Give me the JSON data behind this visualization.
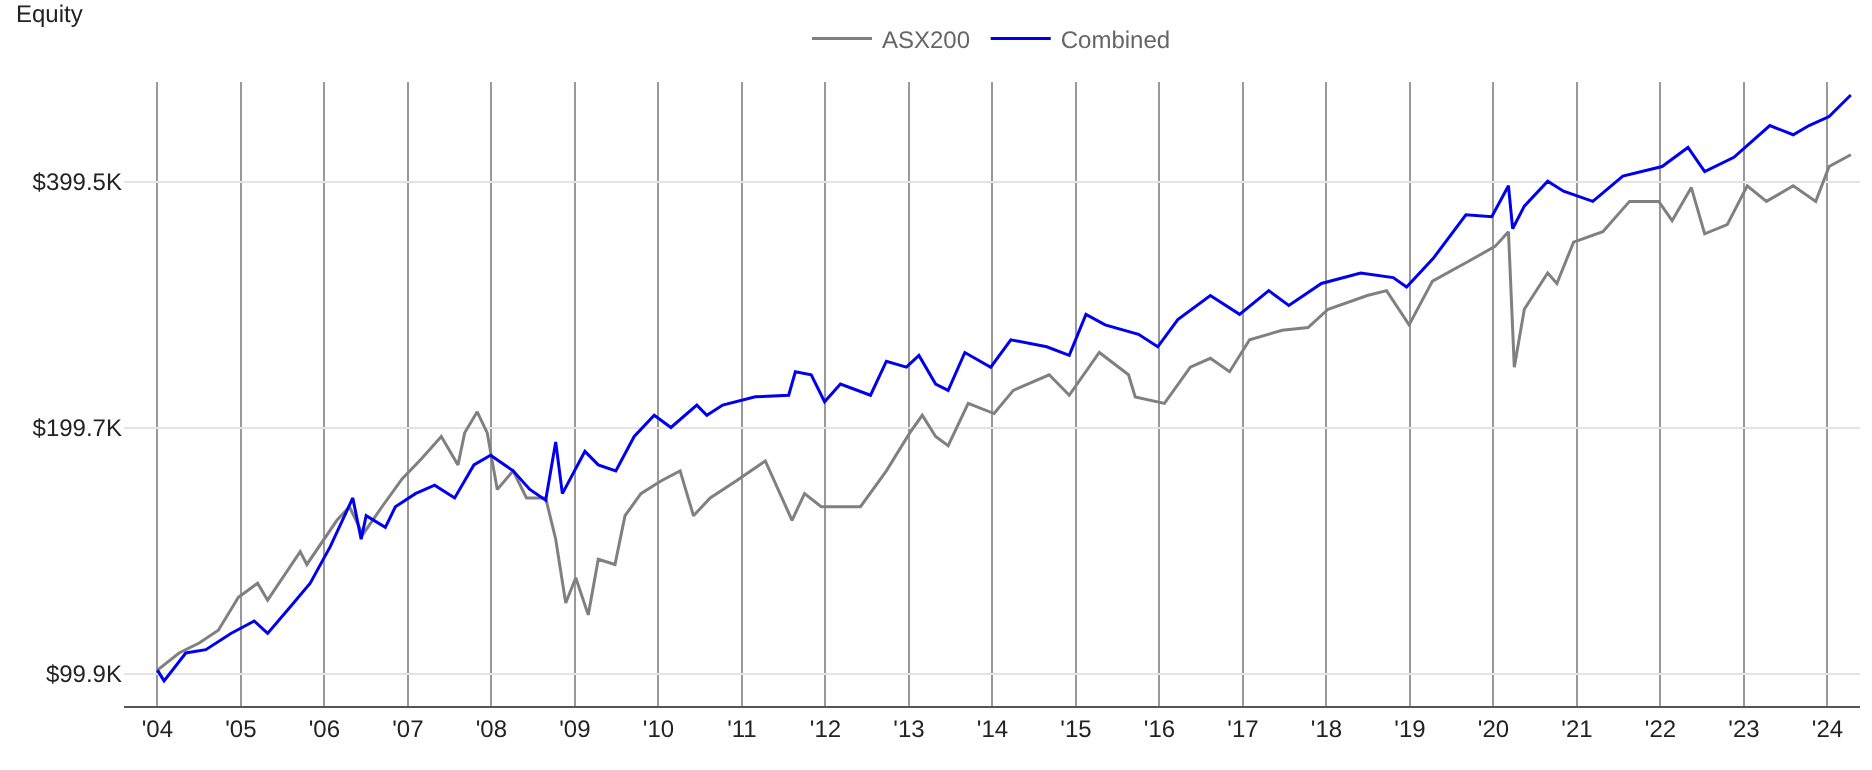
{
  "chart_data": {
    "type": "line",
    "ylabel": "Equity",
    "log": "y",
    "grid": true,
    "legend": "top",
    "line_style": "solid",
    "marker": "none",
    "xlim": [
      2003.6,
      2024.39
    ],
    "ylim": [
      91.3,
      529
    ],
    "xticks": [
      {
        "value": 2004,
        "label": "'04"
      },
      {
        "value": 2005,
        "label": "'05"
      },
      {
        "value": 2006,
        "label": "'06"
      },
      {
        "value": 2007,
        "label": "'07"
      },
      {
        "value": 2008,
        "label": "'08"
      },
      {
        "value": 2009,
        "label": "'09"
      },
      {
        "value": 2010,
        "label": "'10"
      },
      {
        "value": 2011,
        "label": "'11"
      },
      {
        "value": 2012,
        "label": "'12"
      },
      {
        "value": 2013,
        "label": "'13"
      },
      {
        "value": 2014,
        "label": "'14"
      },
      {
        "value": 2015,
        "label": "'15"
      },
      {
        "value": 2016,
        "label": "'16"
      },
      {
        "value": 2017,
        "label": "'17"
      },
      {
        "value": 2018,
        "label": "'18"
      },
      {
        "value": 2019,
        "label": "'19"
      },
      {
        "value": 2020,
        "label": "'20"
      },
      {
        "value": 2021,
        "label": "'21"
      },
      {
        "value": 2022,
        "label": "'22"
      },
      {
        "value": 2023,
        "label": "'23"
      },
      {
        "value": 2024,
        "label": "'24"
      }
    ],
    "yticks": [
      {
        "value": 99.9,
        "label": "$99.9K"
      },
      {
        "value": 199.7,
        "label": "$199.7K"
      },
      {
        "value": 399.5,
        "label": "$399.5K"
      }
    ],
    "series": [
      {
        "name": "ASX200",
        "color": "#808080",
        "x": [
          2004.0,
          2004.26,
          2004.5,
          2004.73,
          2004.97,
          2005.2,
          2005.32,
          2005.71,
          2005.79,
          2006.15,
          2006.3,
          2006.46,
          2006.69,
          2006.93,
          2007.16,
          2007.4,
          2007.6,
          2007.68,
          2007.83,
          2007.95,
          2008.07,
          2008.26,
          2008.42,
          2008.65,
          2008.77,
          2008.89,
          2009.01,
          2009.16,
          2009.28,
          2009.48,
          2009.6,
          2009.79,
          2010.03,
          2010.26,
          2010.42,
          2010.62,
          2010.93,
          2011.28,
          2011.6,
          2011.75,
          2011.95,
          2012.42,
          2012.73,
          2013.01,
          2013.16,
          2013.32,
          2013.47,
          2013.71,
          2014.02,
          2014.25,
          2014.68,
          2014.92,
          2015.28,
          2015.63,
          2015.71,
          2016.06,
          2016.37,
          2016.61,
          2016.84,
          2017.08,
          2017.47,
          2017.78,
          2018.02,
          2018.49,
          2018.72,
          2018.99,
          2019.27,
          2019.67,
          2020.02,
          2020.18,
          2020.25,
          2020.37,
          2020.65,
          2020.76,
          2020.96,
          2021.31,
          2021.63,
          2021.98,
          2022.14,
          2022.37,
          2022.53,
          2022.8,
          2023.04,
          2023.27,
          2023.59,
          2023.86,
          2024.02,
          2024.28
        ],
        "values": [
          101,
          106,
          109,
          113,
          124,
          129,
          123,
          141,
          136,
          154,
          160,
          148,
          160,
          173,
          183,
          195,
          180,
          197,
          209,
          197,
          168,
          177,
          164,
          164,
          146,
          122,
          131,
          118,
          138,
          136,
          156,
          166,
          172,
          177,
          156,
          164,
          172,
          182,
          154,
          166,
          160,
          160,
          177,
          197,
          207,
          195,
          190,
          214,
          208,
          222,
          232,
          219,
          247,
          232,
          218,
          214,
          237,
          243,
          234,
          256,
          263,
          265,
          279,
          290,
          294,
          267,
          302,
          318,
          333,
          347,
          237,
          279,
          309,
          300,
          337,
          347,
          378,
          378,
          358,
          393,
          345,
          354,
          395,
          378,
          395,
          378,
          417,
          431
        ]
      },
      {
        "name": "Combined",
        "color": "#0000ee",
        "x": [
          2004.0,
          2004.08,
          2004.34,
          2004.58,
          2004.88,
          2005.16,
          2005.32,
          2005.6,
          2005.83,
          2006.07,
          2006.34,
          2006.44,
          2006.5,
          2006.73,
          2006.85,
          2007.09,
          2007.32,
          2007.56,
          2007.79,
          2007.99,
          2008.26,
          2008.46,
          2008.65,
          2008.77,
          2008.85,
          2009.12,
          2009.28,
          2009.49,
          2009.71,
          2009.95,
          2010.15,
          2010.46,
          2010.58,
          2010.77,
          2011.16,
          2011.56,
          2011.64,
          2011.83,
          2011.99,
          2012.18,
          2012.54,
          2012.73,
          2012.97,
          2013.12,
          2013.32,
          2013.47,
          2013.67,
          2013.98,
          2014.22,
          2014.65,
          2014.92,
          2015.12,
          2015.35,
          2015.75,
          2015.98,
          2016.22,
          2016.61,
          2016.96,
          2017.31,
          2017.55,
          2017.94,
          2018.41,
          2018.8,
          2018.96,
          2019.28,
          2019.67,
          2019.98,
          2020.18,
          2020.23,
          2020.37,
          2020.65,
          2020.84,
          2021.19,
          2021.55,
          2022.02,
          2022.33,
          2022.53,
          2022.88,
          2023.31,
          2023.59,
          2023.78,
          2024.02,
          2024.28
        ],
        "values": [
          101,
          98,
          106,
          107,
          112,
          116,
          112,
          121,
          129,
          143,
          164,
          146,
          156,
          151,
          160,
          166,
          170,
          164,
          180,
          185,
          177,
          168,
          163,
          192,
          166,
          187,
          180,
          177,
          195,
          207,
          200,
          213,
          207,
          213,
          218,
          219,
          234,
          232,
          215,
          226,
          219,
          241,
          237,
          245,
          226,
          222,
          247,
          237,
          256,
          251,
          245,
          275,
          267,
          260,
          251,
          271,
          290,
          275,
          294,
          282,
          300,
          309,
          305,
          297,
          322,
          364,
          362,
          395,
          350,
          373,
          400,
          389,
          378,
          406,
          417,
          440,
          411,
          428,
          468,
          456,
          468,
          480,
          510
        ]
      }
    ]
  }
}
